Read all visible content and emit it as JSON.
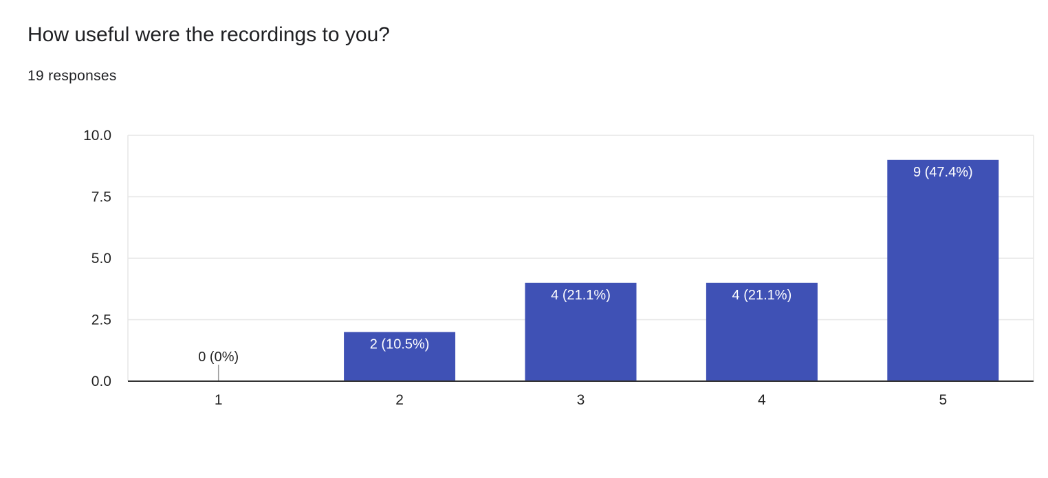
{
  "question": {
    "title": "How useful were the recordings to you?",
    "responses_text": "19 responses"
  },
  "colors": {
    "bar": "#3f51b5",
    "grid": "#e6e6e6",
    "axis": "#333333",
    "label_inside": "#ffffff",
    "label_outside": "#222222"
  },
  "chart_data": {
    "type": "bar",
    "categories": [
      "1",
      "2",
      "3",
      "4",
      "5"
    ],
    "values": [
      0,
      2,
      4,
      4,
      9
    ],
    "data_labels": [
      "0 (0%)",
      "2 (10.5%)",
      "4 (21.1%)",
      "4 (21.1%)",
      "9 (47.4%)"
    ],
    "ylim": [
      0,
      10
    ],
    "yticks": [
      0,
      2.5,
      5,
      7.5,
      10
    ],
    "ytick_labels": [
      "0.0",
      "2.5",
      "5.0",
      "7.5",
      "10.0"
    ],
    "grid": true,
    "legend": "none"
  }
}
